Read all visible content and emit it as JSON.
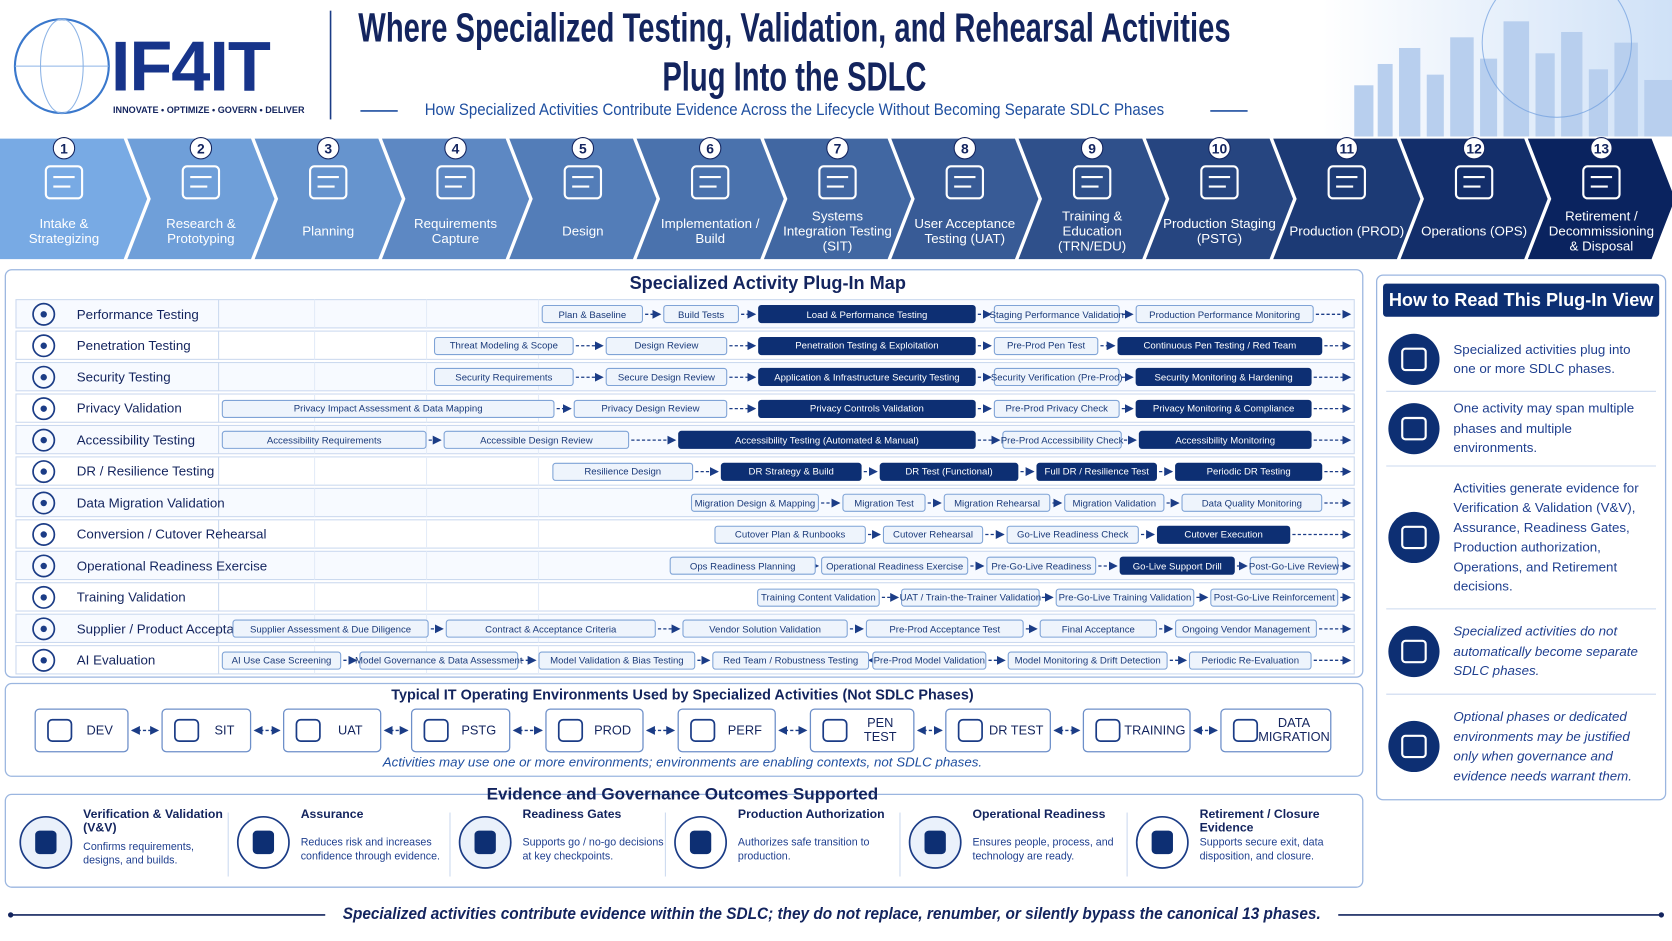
{
  "header": {
    "logo": "IF4IT",
    "tagline": "INNOVATE • OPTIMIZE • GOVERN • DELIVER",
    "title": "Where Specialized Testing, Validation, and Rehearsal Activities Plug Into the SDLC",
    "subtitle": "How Specialized Activities Contribute Evidence Across the Lifecycle Without Becoming Separate SDLC Phases"
  },
  "phases": [
    {
      "number": 1,
      "label": "Intake & Strategizing"
    },
    {
      "number": 2,
      "label": "Research & Prototyping"
    },
    {
      "number": 3,
      "label": "Planning"
    },
    {
      "number": 4,
      "label": "Requirements Capture"
    },
    {
      "number": 5,
      "label": "Design"
    },
    {
      "number": 6,
      "label": "Implementation / Build"
    },
    {
      "number": 7,
      "label": "Systems Integration Testing (SIT)"
    },
    {
      "number": 8,
      "label": "User Acceptance Testing (UAT)"
    },
    {
      "number": 9,
      "label": "Training & Education (TRN/EDU)"
    },
    {
      "number": 10,
      "label": "Production Staging (PSTG)"
    },
    {
      "number": 11,
      "label": "Production (PROD)"
    },
    {
      "number": 12,
      "label": "Operations (OPS)"
    },
    {
      "number": 13,
      "label": "Retirement / Decommissioning & Disposal"
    }
  ],
  "plugin_map": {
    "title": "Specialized Activity Plug-In Map",
    "rows": [
      {
        "name": "Performance Testing",
        "activities": [
          "Plan & Baseline",
          "Build Tests",
          "Load & Performance Testing",
          "Staging Performance Validation",
          "Production Performance Monitoring"
        ]
      },
      {
        "name": "Penetration Testing",
        "activities": [
          "Threat Modeling & Scope",
          "Design Review",
          "Penetration Testing & Exploitation",
          "Pre-Prod Pen Test",
          "Continuous Pen Testing / Red Team"
        ]
      },
      {
        "name": "Security Testing",
        "activities": [
          "Security Requirements",
          "Secure Design Review",
          "Application & Infrastructure Security Testing",
          "Security Verification (Pre-Prod)",
          "Security Monitoring & Hardening"
        ]
      },
      {
        "name": "Privacy Validation",
        "activities": [
          "Privacy Impact Assessment & Data Mapping",
          "Privacy Design Review",
          "Privacy Controls Validation",
          "Pre-Prod Privacy Check",
          "Privacy Monitoring & Compliance"
        ]
      },
      {
        "name": "Accessibility Testing",
        "activities": [
          "Accessibility Requirements",
          "Accessible Design Review",
          "Accessibility Testing (Automated & Manual)",
          "Pre-Prod Accessibility Check",
          "Accessibility Monitoring"
        ]
      },
      {
        "name": "DR / Resilience Testing",
        "activities": [
          "Resilience Design",
          "DR Strategy & Build",
          "DR Test (Functional)",
          "Full DR / Resilience Test",
          "Periodic DR Testing"
        ]
      },
      {
        "name": "Data Migration Validation",
        "activities": [
          "Migration Design & Mapping",
          "Migration Test",
          "Migration Rehearsal",
          "Migration Validation",
          "Data Quality Monitoring"
        ]
      },
      {
        "name": "Conversion / Cutover Rehearsal",
        "activities": [
          "Cutover Plan & Runbooks",
          "Cutover Rehearsal",
          "Go-Live Readiness Check",
          "Cutover Execution"
        ]
      },
      {
        "name": "Operational Readiness Exercise",
        "activities": [
          "Ops Readiness Planning",
          "Operational Readiness Exercise",
          "Pre-Go-Live Readiness",
          "Go-Live Support Drill",
          "Post-Go-Live Review"
        ]
      },
      {
        "name": "Training Validation",
        "activities": [
          "Training Content Validation",
          "UAT / Train-the-Trainer Validation",
          "Pre-Go-Live Training Validation",
          "Post-Go-Live Reinforcement"
        ]
      },
      {
        "name": "Supplier / Product Acceptance",
        "activities": [
          "Supplier Assessment & Due Diligence",
          "Contract & Acceptance Criteria",
          "Vendor Solution Validation",
          "Pre-Prod Acceptance Test",
          "Final Acceptance",
          "Ongoing Vendor Management"
        ]
      },
      {
        "name": "AI Evaluation",
        "activities": [
          "AI Use Case Screening",
          "Model Governance & Data Assessment",
          "Model Validation & Bias Testing",
          "Red Team / Robustness Testing",
          "Pre-Prod Model Validation",
          "Model Monitoring & Drift Detection",
          "Periodic Re-Evaluation"
        ]
      }
    ]
  },
  "how_to_read": {
    "title": "How to Read This Plug-In View",
    "items": [
      "Specialized activities plug into one or more SDLC phases.",
      "One activity may span multiple phases and multiple environments.",
      "Activities generate evidence for Verification & Validation (V&V), Assurance, Readiness Gates, Production authorization, Operations, and Retirement decisions.",
      "Specialized activities do not automatically become separate SDLC phases.",
      "Optional phases or dedicated environments may be justified only when governance and evidence needs warrant them."
    ]
  },
  "environments": {
    "title": "Typical IT Operating Environments Used by Specialized Activities (Not SDLC Phases)",
    "items": [
      "DEV",
      "SIT",
      "UAT",
      "PSTG",
      "PROD",
      "PERF",
      "PEN TEST",
      "DR TEST",
      "TRAINING",
      "DATA MIGRATION"
    ],
    "note": "Activities may use one or more environments; environments are enabling contexts, not SDLC phases."
  },
  "outcomes": {
    "title": "Evidence and Governance Outcomes Supported",
    "items": [
      {
        "title": "Verification & Validation (V&V)",
        "description": "Confirms requirements, designs, and builds."
      },
      {
        "title": "Assurance",
        "description": "Reduces risk and increases confidence through evidence."
      },
      {
        "title": "Readiness Gates",
        "description": "Supports go / no-go decisions at key checkpoints."
      },
      {
        "title": "Production Authorization",
        "description": "Authorizes safe transition to production."
      },
      {
        "title": "Operational Readiness",
        "description": "Ensures people, process, and technology are ready."
      },
      {
        "title": "Retirement / Closure Evidence",
        "description": "Supports secure exit, data disposition, and closure."
      }
    ]
  },
  "footer": "Specialized activities contribute evidence within the SDLC; they do not replace, renumber, or silently bypass the canonical 13 phases."
}
